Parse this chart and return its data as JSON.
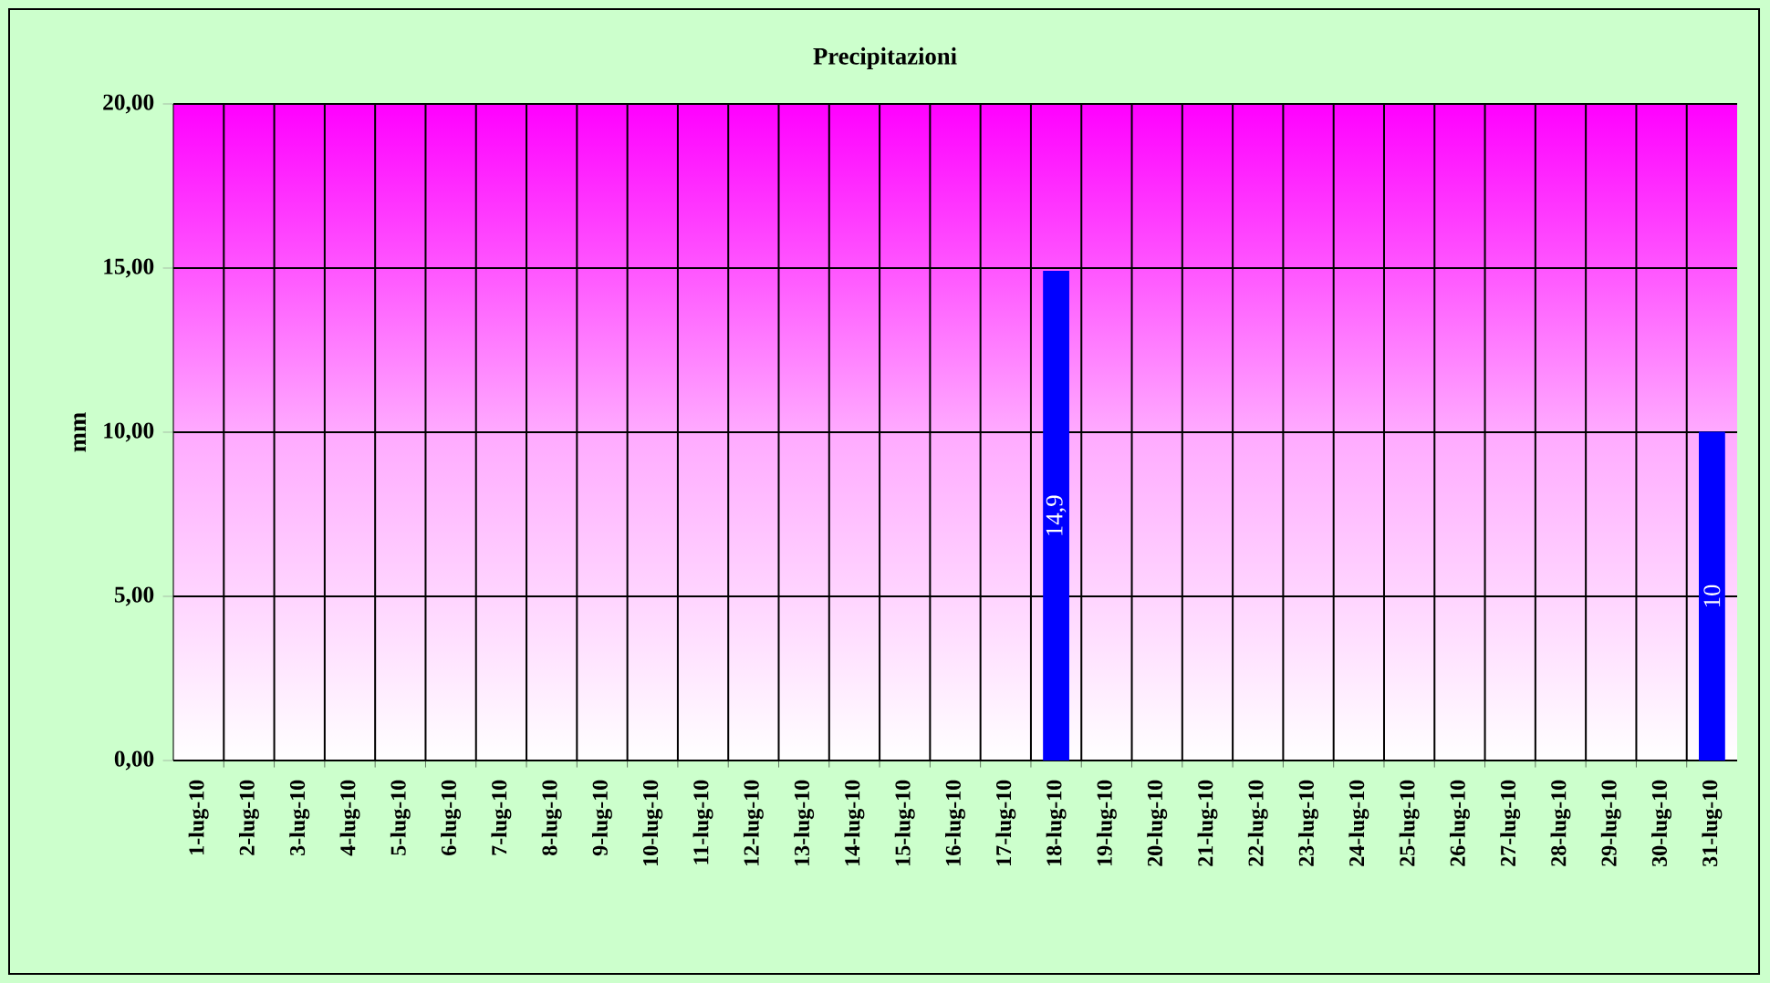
{
  "chart_data": {
    "type": "bar",
    "title": "Precipitazioni",
    "ylabel": "mm",
    "categories": [
      "1-lug-10",
      "2-lug-10",
      "3-lug-10",
      "4-lug-10",
      "5-lug-10",
      "6-lug-10",
      "7-lug-10",
      "8-lug-10",
      "9-lug-10",
      "10-lug-10",
      "11-lug-10",
      "12-lug-10",
      "13-lug-10",
      "14-lug-10",
      "15-lug-10",
      "16-lug-10",
      "17-lug-10",
      "18-lug-10",
      "19-lug-10",
      "20-lug-10",
      "21-lug-10",
      "22-lug-10",
      "23-lug-10",
      "24-lug-10",
      "25-lug-10",
      "26-lug-10",
      "27-lug-10",
      "28-lug-10",
      "29-lug-10",
      "30-lug-10",
      "31-lug-10"
    ],
    "values": [
      null,
      null,
      null,
      null,
      null,
      null,
      null,
      null,
      null,
      null,
      null,
      null,
      null,
      null,
      null,
      null,
      null,
      14.9,
      null,
      null,
      null,
      null,
      null,
      null,
      null,
      null,
      null,
      null,
      null,
      null,
      10
    ],
    "value_labels": [
      null,
      null,
      null,
      null,
      null,
      null,
      null,
      null,
      null,
      null,
      null,
      null,
      null,
      null,
      null,
      null,
      null,
      "14,9",
      null,
      null,
      null,
      null,
      null,
      null,
      null,
      null,
      null,
      null,
      null,
      null,
      "10"
    ],
    "color": "#0000ff",
    "ylim": [
      0,
      20
    ],
    "yticks": [
      {
        "value": 0,
        "label": "0,00"
      },
      {
        "value": 5,
        "label": "5,00"
      },
      {
        "value": 10,
        "label": "10,00"
      },
      {
        "value": 15,
        "label": "15,00"
      },
      {
        "value": 20,
        "label": "20,00"
      }
    ],
    "grid": true
  }
}
